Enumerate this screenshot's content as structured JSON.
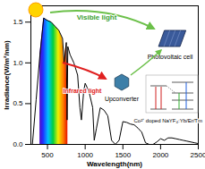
{
  "chart_data": {
    "type": "area",
    "x_label": "Wavelength(nm)",
    "y_label": "Irradiance(W/m²/nm)",
    "x": [
      280,
      300,
      350,
      400,
      450,
      500,
      550,
      600,
      650,
      700,
      720,
      750,
      760,
      770,
      800,
      850,
      900,
      930,
      950,
      980,
      1000,
      1050,
      1100,
      1120,
      1150,
      1200,
      1250,
      1300,
      1350,
      1400,
      1450,
      1500,
      1550,
      1600,
      1650,
      1700,
      1750,
      1800,
      1850,
      1900,
      1950,
      2000,
      2050,
      2100,
      2150,
      2200,
      2250,
      2300,
      2350,
      2400,
      2450,
      2500
    ],
    "values": [
      0.0,
      0.0,
      0.55,
      1.1,
      1.55,
      1.52,
      1.5,
      1.45,
      1.4,
      1.3,
      1.0,
      1.25,
      0.3,
      1.2,
      1.1,
      1.0,
      0.85,
      0.45,
      0.3,
      0.65,
      0.75,
      0.65,
      0.45,
      0.05,
      0.2,
      0.45,
      0.42,
      0.35,
      0.05,
      0.0,
      0.05,
      0.28,
      0.27,
      0.25,
      0.24,
      0.2,
      0.15,
      0.02,
      0.0,
      0.0,
      0.03,
      0.07,
      0.05,
      0.08,
      0.08,
      0.07,
      0.06,
      0.05,
      0.04,
      0.03,
      0.02,
      0.01
    ],
    "color": "#000000",
    "highlight_x": [
      380,
      780
    ],
    "xlim": [
      280,
      2500
    ],
    "xticks": [
      500,
      1000,
      1500,
      2000,
      2500
    ],
    "ylim": [
      0,
      1.7
    ],
    "yticks": [
      {
        "value": 0,
        "label": "0.0"
      },
      0.5,
      {
        "value": 1,
        "label": "1.0"
      },
      1.5
    ],
    "annotations": {
      "visible": "Visible light",
      "infrared": "Infrared light",
      "upconverter": "Upconverter",
      "cell": "Photovoltaic cell",
      "material": "Co²⁺ doped NaYF₄:Yb/Er/Tm"
    }
  }
}
